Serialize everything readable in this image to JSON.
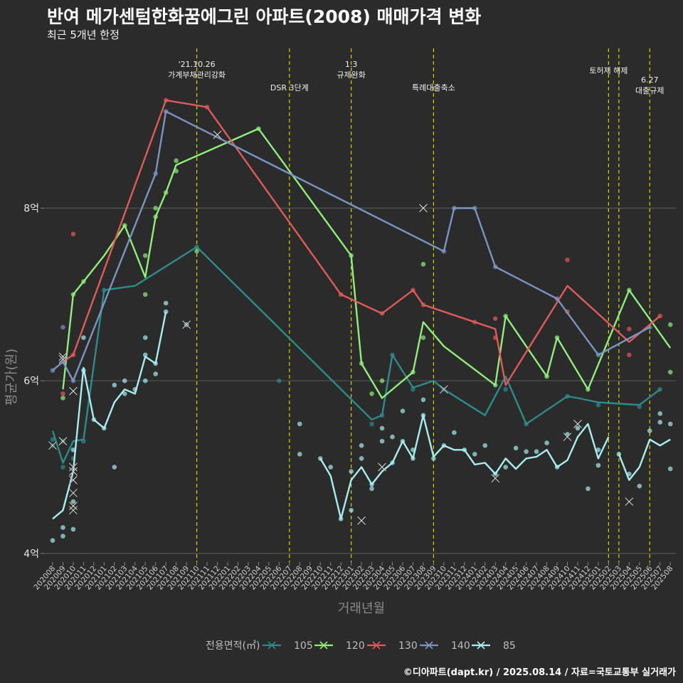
{
  "header": {
    "title": "반여 메가센텀한화꿈에그린 아파트(2008) 매매가격 변화",
    "subtitle": "최근 5개년 한정"
  },
  "footer": {
    "caption": "©디아파트(dapt.kr) / 2025.08.14 / 자료=국토교통부 실거래가"
  },
  "chart_data": {
    "type": "line",
    "title": "반여 메가센텀한화꿈에그린 아파트(2008) 매매가격 변화",
    "subtitle": "최근 5개년 한정",
    "xlabel": "거래년월",
    "ylabel": "평균가(원)",
    "ylim": [
      3.9,
      9.9
    ],
    "yticks": [
      {
        "value": 4,
        "label": "4억"
      },
      {
        "value": 6,
        "label": "6억"
      },
      {
        "value": 8,
        "label": "8억"
      }
    ],
    "grid": true,
    "legend": {
      "title": "전용면적(㎡)",
      "position": "bottom"
    },
    "months": [
      "202008",
      "202009",
      "202010",
      "202011",
      "202012",
      "202101",
      "202102",
      "202103",
      "202104",
      "202105",
      "202106",
      "202107",
      "202108",
      "202109",
      "202110",
      "202111",
      "202112",
      "202201",
      "202202",
      "202203",
      "202204",
      "202205",
      "202206",
      "202207",
      "202208",
      "202209",
      "202210",
      "202211",
      "202212",
      "202301",
      "202302",
      "202303",
      "202304",
      "202305",
      "202306",
      "202307",
      "202308",
      "202309",
      "202310",
      "202311",
      "202312",
      "202401",
      "202402",
      "202403",
      "202404",
      "202405",
      "202406",
      "202407",
      "202408",
      "202409",
      "202410",
      "202411",
      "202412",
      "202501",
      "202502",
      "202503",
      "202504",
      "202505",
      "202506",
      "202507",
      "202508"
    ],
    "events": [
      {
        "month": 14.0,
        "label": "'21.10.26\n가계부채관리강화"
      },
      {
        "month": 23.0,
        "label": "DSR 3단계"
      },
      {
        "month": 29.0,
        "label": "1.3\n규제완화"
      },
      {
        "month": 37.0,
        "label": "특례대출축소"
      },
      {
        "month": 54.0,
        "label": "토허제 해제"
      },
      {
        "month": 55.0,
        "label": ""
      },
      {
        "month": 58.0,
        "label": "6.27\n대출규제"
      }
    ],
    "series": [
      {
        "name": "105",
        "color": "#2e8b8b",
        "line": [
          [
            0,
            5.42
          ],
          [
            1,
            5.05
          ],
          [
            2,
            5.3
          ],
          [
            3,
            5.32
          ],
          [
            5,
            7.05
          ],
          [
            8,
            7.1
          ],
          [
            14,
            7.55
          ],
          [
            31,
            5.55
          ],
          [
            32,
            5.6
          ],
          [
            33,
            6.3
          ],
          [
            35,
            5.92
          ],
          [
            37,
            6.0
          ],
          [
            38,
            5.9
          ],
          [
            42,
            5.6
          ],
          [
            44,
            6.05
          ],
          [
            46,
            5.5
          ],
          [
            50,
            5.82
          ],
          [
            51,
            5.8
          ],
          [
            53,
            5.75
          ],
          [
            57,
            5.72
          ],
          [
            59,
            5.9
          ]
        ],
        "points": [
          [
            0,
            5.32
          ],
          [
            0,
            5.25
          ],
          [
            1,
            5.0
          ],
          [
            1,
            5.3
          ],
          [
            2,
            5.1
          ],
          [
            3,
            5.3
          ],
          [
            5,
            7.05
          ],
          [
            14,
            7.55
          ],
          [
            22,
            6.0
          ],
          [
            31,
            5.5
          ],
          [
            32,
            5.6
          ],
          [
            33,
            6.3
          ],
          [
            35,
            5.9
          ],
          [
            38,
            5.9
          ],
          [
            44,
            5.9
          ],
          [
            46,
            5.5
          ],
          [
            50,
            5.82
          ],
          [
            53,
            5.72
          ],
          [
            57,
            5.7
          ],
          [
            59,
            5.9
          ]
        ],
        "crosses": [
          [
            0,
            5.25
          ],
          [
            1,
            5.3
          ],
          [
            2,
            5.0
          ],
          [
            38,
            5.9
          ]
        ]
      },
      {
        "name": "120",
        "color": "#90ee7a",
        "line": [
          [
            1,
            5.9
          ],
          [
            2,
            7.0
          ],
          [
            3,
            7.15
          ],
          [
            5,
            7.45
          ],
          [
            7,
            7.8
          ],
          [
            9,
            7.2
          ],
          [
            10,
            7.9
          ],
          [
            11,
            8.18
          ],
          [
            12,
            8.5
          ],
          [
            20,
            8.92
          ],
          [
            29,
            7.45
          ],
          [
            30,
            6.2
          ],
          [
            32,
            5.8
          ],
          [
            35,
            6.1
          ],
          [
            36,
            6.68
          ],
          [
            38,
            6.4
          ],
          [
            43,
            5.95
          ],
          [
            44,
            6.75
          ],
          [
            48,
            6.05
          ],
          [
            49,
            6.5
          ],
          [
            52,
            5.9
          ],
          [
            56,
            7.05
          ],
          [
            60,
            6.38
          ]
        ],
        "points": [
          [
            1,
            5.8
          ],
          [
            2,
            7.0
          ],
          [
            3,
            7.15
          ],
          [
            7,
            7.8
          ],
          [
            9,
            7.0
          ],
          [
            9,
            7.45
          ],
          [
            10,
            7.9
          ],
          [
            10,
            8.0
          ],
          [
            11,
            8.18
          ],
          [
            12,
            8.43
          ],
          [
            12,
            8.55
          ],
          [
            14,
            7.5
          ],
          [
            20,
            8.92
          ],
          [
            29,
            7.45
          ],
          [
            30,
            6.2
          ],
          [
            31,
            5.85
          ],
          [
            32,
            6.0
          ],
          [
            35,
            6.1
          ],
          [
            36,
            6.5
          ],
          [
            36,
            7.35
          ],
          [
            43,
            5.95
          ],
          [
            44,
            6.75
          ],
          [
            48,
            6.05
          ],
          [
            49,
            6.5
          ],
          [
            52,
            5.9
          ],
          [
            56,
            7.05
          ],
          [
            60,
            6.65
          ],
          [
            60,
            6.1
          ]
        ],
        "crosses": [
          [
            1,
            6.25
          ]
        ]
      },
      {
        "name": "130",
        "color": "#e05a5a",
        "line": [
          [
            1,
            6.22
          ],
          [
            2,
            6.3
          ],
          [
            11,
            9.25
          ],
          [
            15,
            9.17
          ],
          [
            28,
            7.0
          ],
          [
            32,
            6.78
          ],
          [
            35,
            7.05
          ],
          [
            36,
            6.88
          ],
          [
            41,
            6.68
          ],
          [
            43,
            6.6
          ],
          [
            44,
            5.95
          ],
          [
            50,
            7.1
          ],
          [
            56,
            6.45
          ],
          [
            59,
            6.75
          ]
        ],
        "points": [
          [
            1,
            5.85
          ],
          [
            2,
            6.3
          ],
          [
            2,
            7.7
          ],
          [
            11,
            9.25
          ],
          [
            15,
            9.17
          ],
          [
            28,
            7.0
          ],
          [
            32,
            6.78
          ],
          [
            35,
            7.05
          ],
          [
            36,
            6.88
          ],
          [
            41,
            6.68
          ],
          [
            43,
            6.72
          ],
          [
            43,
            6.5
          ],
          [
            50,
            7.4
          ],
          [
            50,
            6.8
          ],
          [
            56,
            6.6
          ],
          [
            56,
            6.3
          ],
          [
            59,
            6.75
          ]
        ],
        "crosses": [
          [
            1,
            6.28
          ],
          [
            2,
            5.88
          ]
        ]
      },
      {
        "name": "140",
        "color": "#7a95c2",
        "line": [
          [
            0,
            6.12
          ],
          [
            1,
            6.22
          ],
          [
            2,
            6.0
          ],
          [
            10,
            8.4
          ],
          [
            11,
            9.12
          ],
          [
            38,
            7.5
          ],
          [
            39,
            8.0
          ],
          [
            41,
            8.0
          ],
          [
            43,
            7.32
          ],
          [
            49,
            6.95
          ],
          [
            53,
            6.3
          ],
          [
            58,
            6.62
          ]
        ],
        "points": [
          [
            0,
            6.12
          ],
          [
            1,
            6.22
          ],
          [
            1,
            6.62
          ],
          [
            2,
            6.0
          ],
          [
            10,
            8.4
          ],
          [
            11,
            9.12
          ],
          [
            38,
            7.5
          ],
          [
            39,
            8.0
          ],
          [
            41,
            8.0
          ],
          [
            43,
            7.32
          ],
          [
            49,
            6.95
          ],
          [
            53,
            6.3
          ],
          [
            58,
            6.62
          ]
        ],
        "crosses": [
          [
            16,
            8.85
          ],
          [
            36,
            8.0
          ]
        ]
      },
      {
        "name": "85",
        "color": "#a8eef0",
        "line": [
          [
            0,
            4.4
          ],
          [
            1,
            4.5
          ],
          [
            2,
            4.95
          ],
          [
            3,
            6.15
          ],
          [
            4,
            5.55
          ],
          [
            5,
            5.45
          ],
          [
            6,
            5.75
          ],
          [
            7,
            5.9
          ],
          [
            8,
            5.85
          ],
          [
            9,
            6.28
          ],
          [
            10,
            6.2
          ],
          [
            11,
            6.8
          ],
          null,
          [
            26,
            5.1
          ],
          [
            27,
            4.9
          ],
          [
            28,
            4.4
          ],
          [
            29,
            4.85
          ],
          [
            30,
            5.0
          ],
          [
            31,
            4.8
          ],
          [
            32,
            4.95
          ],
          [
            33,
            5.05
          ],
          [
            34,
            5.3
          ],
          [
            35,
            5.1
          ],
          [
            36,
            5.6
          ],
          [
            37,
            5.12
          ],
          [
            38,
            5.25
          ],
          [
            39,
            5.2
          ],
          [
            40,
            5.2
          ],
          [
            41,
            5.03
          ],
          [
            42,
            5.05
          ],
          [
            43,
            4.92
          ],
          [
            44,
            5.1
          ],
          [
            45,
            4.98
          ],
          [
            46,
            5.1
          ],
          [
            47,
            5.12
          ],
          [
            48,
            5.2
          ],
          [
            49,
            5.0
          ],
          [
            50,
            5.08
          ],
          [
            51,
            5.35
          ],
          [
            52,
            5.5
          ],
          [
            53,
            5.1
          ],
          [
            54,
            5.35
          ],
          null,
          [
            55,
            5.15
          ],
          [
            56,
            4.85
          ],
          [
            57,
            5.0
          ],
          [
            58,
            5.32
          ],
          [
            59,
            5.25
          ],
          [
            60,
            5.32
          ]
        ],
        "points": [
          [
            0,
            4.15
          ],
          [
            1,
            4.2
          ],
          [
            1,
            4.3
          ],
          [
            2,
            4.28
          ],
          [
            2,
            4.6
          ],
          [
            2,
            5.2
          ],
          [
            3,
            6.12
          ],
          [
            3,
            6.5
          ],
          [
            4,
            5.55
          ],
          [
            5,
            5.45
          ],
          [
            6,
            5.0
          ],
          [
            6,
            5.95
          ],
          [
            7,
            5.85
          ],
          [
            7,
            6.0
          ],
          [
            8,
            5.9
          ],
          [
            9,
            6.0
          ],
          [
            9,
            6.3
          ],
          [
            9,
            6.5
          ],
          [
            10,
            6.08
          ],
          [
            10,
            6.2
          ],
          [
            11,
            6.8
          ],
          [
            11,
            6.9
          ],
          [
            13,
            6.65
          ],
          [
            24,
            5.5
          ],
          [
            24,
            5.15
          ],
          [
            26,
            5.1
          ],
          [
            27,
            5.0
          ],
          [
            28,
            4.4
          ],
          [
            29,
            4.95
          ],
          [
            29,
            4.5
          ],
          [
            30,
            5.1
          ],
          [
            30,
            5.25
          ],
          [
            31,
            4.8
          ],
          [
            31,
            4.75
          ],
          [
            32,
            5.3
          ],
          [
            32,
            5.45
          ],
          [
            33,
            5.05
          ],
          [
            33,
            5.35
          ],
          [
            34,
            5.3
          ],
          [
            34,
            5.65
          ],
          [
            35,
            5.1
          ],
          [
            35,
            5.2
          ],
          [
            36,
            5.6
          ],
          [
            36,
            5.78
          ],
          [
            37,
            5.1
          ],
          [
            38,
            5.25
          ],
          [
            39,
            5.4
          ],
          [
            40,
            5.2
          ],
          [
            41,
            5.15
          ],
          [
            42,
            5.25
          ],
          [
            43,
            4.92
          ],
          [
            44,
            5.0
          ],
          [
            45,
            5.22
          ],
          [
            46,
            5.18
          ],
          [
            47,
            5.18
          ],
          [
            48,
            5.28
          ],
          [
            49,
            5.0
          ],
          [
            50,
            5.38
          ],
          [
            51,
            5.45
          ],
          [
            52,
            4.75
          ],
          [
            53,
            5.2
          ],
          [
            55,
            5.15
          ],
          [
            56,
            4.92
          ],
          [
            57,
            4.78
          ],
          [
            58,
            5.42
          ],
          [
            59,
            5.52
          ],
          [
            59,
            5.62
          ],
          [
            60,
            5.5
          ],
          [
            60,
            4.98
          ],
          [
            53,
            5.02
          ]
        ],
        "crosses": [
          [
            2,
            4.95
          ],
          [
            2,
            4.5
          ],
          [
            2,
            4.55
          ],
          [
            2,
            4.7
          ],
          [
            2,
            4.85
          ],
          [
            13,
            6.65
          ],
          [
            30,
            4.38
          ],
          [
            32,
            5.0
          ],
          [
            43,
            4.87
          ],
          [
            50,
            5.35
          ],
          [
            51,
            5.5
          ],
          [
            56,
            4.6
          ]
        ]
      }
    ]
  }
}
